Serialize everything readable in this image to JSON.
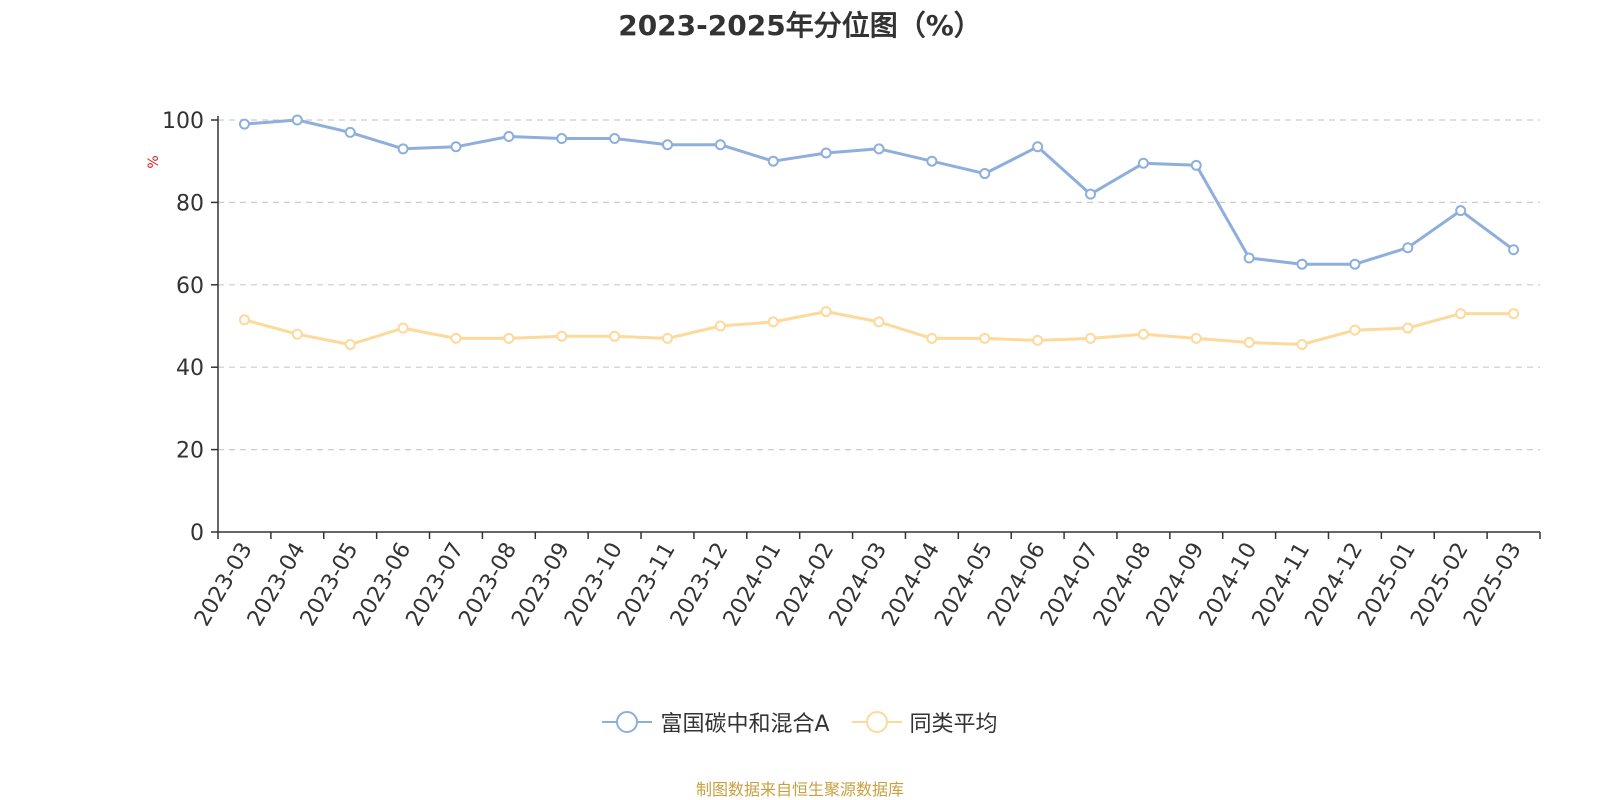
{
  "chart_data": {
    "type": "line",
    "title": "2023-2025年分位图（%）",
    "ylabel": "%",
    "xlabel": "",
    "ylim": [
      0,
      100
    ],
    "yticks": [
      0,
      20,
      40,
      60,
      80,
      100
    ],
    "grid": true,
    "legend_position": "bottom-center",
    "categories": [
      "2023-03",
      "2023-04",
      "2023-05",
      "2023-06",
      "2023-07",
      "2023-08",
      "2023-09",
      "2023-10",
      "2023-11",
      "2023-12",
      "2024-01",
      "2024-02",
      "2024-03",
      "2024-04",
      "2024-05",
      "2024-06",
      "2024-07",
      "2024-08",
      "2024-09",
      "2024-10",
      "2024-11",
      "2024-12",
      "2025-01",
      "2025-02",
      "2025-03"
    ],
    "series": [
      {
        "name": "富国碳中和混合A",
        "color": "#8eaedc",
        "values": [
          99,
          100,
          97,
          93,
          93.5,
          96,
          95.5,
          95.5,
          94,
          94,
          90,
          92,
          93,
          90,
          87,
          93.5,
          82,
          89.5,
          89,
          66.5,
          65,
          65,
          69,
          78,
          68.5
        ]
      },
      {
        "name": "同类平均",
        "color": "#fdd99b",
        "values": [
          51.5,
          48,
          45.5,
          49.5,
          47,
          47,
          47.5,
          47.5,
          47,
          50,
          51,
          53.5,
          51,
          47,
          47,
          46.5,
          47,
          48,
          47,
          46,
          45.5,
          49,
          49.5,
          53,
          53
        ]
      }
    ]
  },
  "source_note": "制图数据来自恒生聚源数据库"
}
